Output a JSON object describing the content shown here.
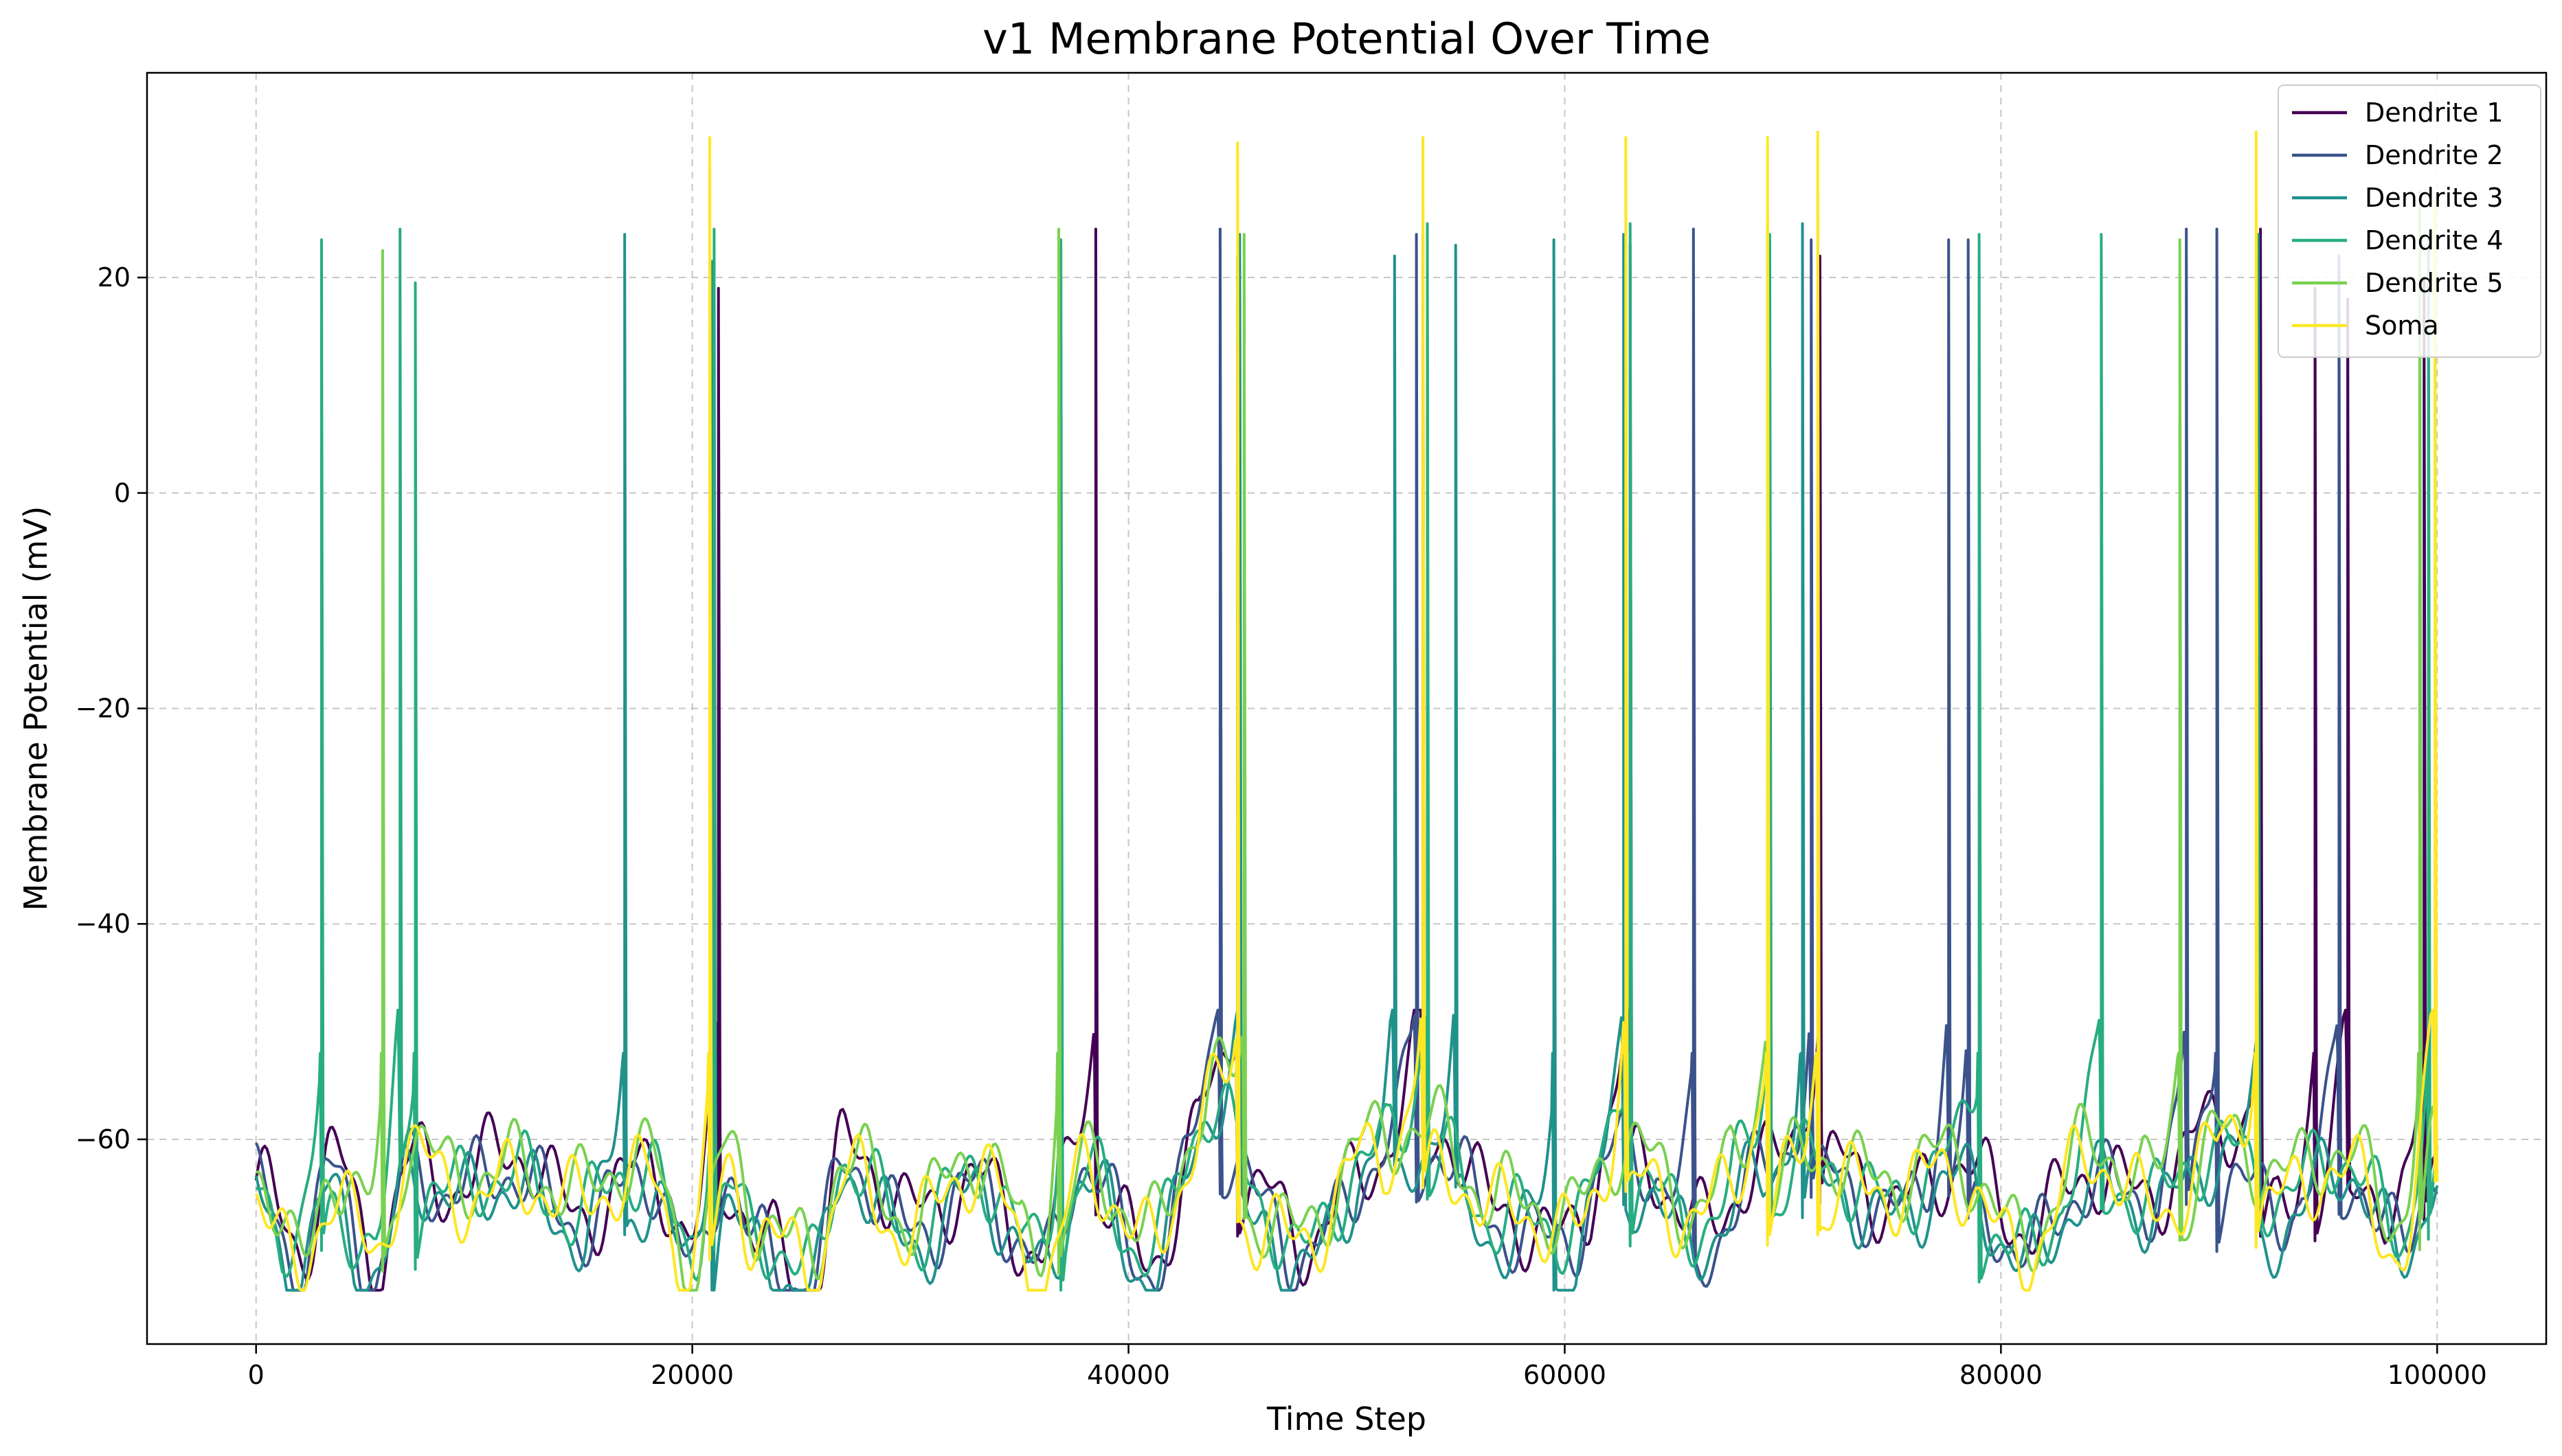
{
  "chart_data": {
    "type": "line",
    "title": "v1 Membrane Potential Over Time",
    "xlabel": "Time Step",
    "ylabel": "Membrane Potential (mV)",
    "xlim": [
      -5000,
      105000
    ],
    "ylim": [
      -79,
      39
    ],
    "xticks": [
      0,
      20000,
      40000,
      60000,
      80000,
      100000
    ],
    "yticks": [
      -60,
      -40,
      -20,
      0,
      20
    ],
    "grid": true,
    "legend_position": "top-right",
    "baseline": {
      "x": [
        0,
        2000,
        3500,
        5500,
        7000,
        9000,
        12000,
        15000,
        18000,
        20000,
        21500,
        23000,
        25500,
        27000,
        30000,
        33000,
        36000,
        38000,
        41000,
        44000,
        46000,
        48000,
        51000,
        54000,
        57000,
        60000,
        63000,
        66000,
        69000,
        72000,
        75000,
        78000,
        81000,
        84000,
        87000,
        90000,
        93000,
        96000,
        98500,
        100000
      ],
      "y": [
        -65,
        -73,
        -63,
        -72,
        -62,
        -66,
        -63,
        -67,
        -64,
        -73,
        -62,
        -69,
        -74,
        -63,
        -68,
        -64,
        -73,
        -62,
        -71,
        -58,
        -66,
        -70,
        -63,
        -60,
        -67,
        -70,
        -61,
        -68,
        -64,
        -62,
        -66,
        -64,
        -70,
        -63,
        -67,
        -60,
        -66,
        -63,
        -70,
        -60
      ]
    },
    "series": [
      {
        "name": "Dendrite 1",
        "color": "#440154",
        "offset": 2.0,
        "phase": 0.0,
        "spikes": [
          [
            21200,
            19
          ],
          [
            38500,
            24.5
          ],
          [
            45000,
            22
          ],
          [
            53500,
            24
          ],
          [
            63000,
            23
          ],
          [
            71700,
            22
          ],
          [
            91900,
            24.5
          ],
          [
            94400,
            19
          ],
          [
            95900,
            18
          ],
          [
            99400,
            20
          ]
        ]
      },
      {
        "name": "Dendrite 2",
        "color": "#3b528b",
        "offset": 0.0,
        "phase": 1.3,
        "spikes": [
          [
            44200,
            24.5
          ],
          [
            53200,
            24
          ],
          [
            65900,
            24.5
          ],
          [
            71300,
            23.5
          ],
          [
            77600,
            23.5
          ],
          [
            78500,
            23.5
          ],
          [
            88500,
            24.5
          ],
          [
            89900,
            24.5
          ],
          [
            95500,
            22
          ]
        ]
      },
      {
        "name": "Dendrite 3",
        "color": "#21918c",
        "offset": -1.5,
        "phase": 2.1,
        "spikes": [
          [
            16900,
            24
          ],
          [
            20900,
            21.5
          ],
          [
            45100,
            24
          ],
          [
            52200,
            22
          ],
          [
            55000,
            23
          ],
          [
            59500,
            23.5
          ],
          [
            62700,
            24
          ],
          [
            70900,
            25
          ],
          [
            91800,
            24
          ]
        ]
      },
      {
        "name": "Dendrite 4",
        "color": "#27ad81",
        "offset": 1.0,
        "phase": 3.0,
        "spikes": [
          [
            3000,
            23.5
          ],
          [
            6600,
            24.5
          ],
          [
            7300,
            19.5
          ],
          [
            21000,
            24.5
          ],
          [
            36900,
            23.5
          ],
          [
            53700,
            25
          ],
          [
            63000,
            25
          ],
          [
            69400,
            24
          ],
          [
            79000,
            24
          ],
          [
            84600,
            24
          ],
          [
            99600,
            24
          ]
        ]
      },
      {
        "name": "Dendrite 5",
        "color": "#7ad151",
        "offset": 3.0,
        "phase": 4.2,
        "spikes": [
          [
            5800,
            22.5
          ],
          [
            36800,
            24.5
          ],
          [
            45300,
            24
          ],
          [
            69300,
            24.5
          ],
          [
            88200,
            23.5
          ],
          [
            99200,
            28
          ]
        ]
      },
      {
        "name": "Soma",
        "color": "#fde725",
        "offset": 0.5,
        "phase": 5.0,
        "spikes": [
          [
            20800,
            33
          ],
          [
            45000,
            32.5
          ],
          [
            53500,
            33
          ],
          [
            62800,
            33
          ],
          [
            69300,
            33
          ],
          [
            71600,
            33.5
          ],
          [
            91700,
            33.5
          ],
          [
            99900,
            27
          ]
        ]
      }
    ]
  }
}
